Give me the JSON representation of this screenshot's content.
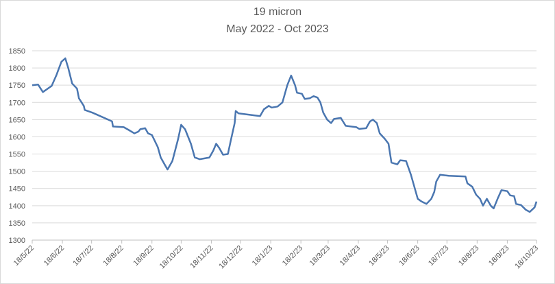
{
  "chart_data": {
    "type": "line",
    "title": "19 micron",
    "subtitle": "May 2022 - Oct 2023",
    "x": [
      "18/5/22",
      "24/5/22",
      "29/5/22",
      "7/6/22",
      "12/6/22",
      "17/6/22",
      "21/6/22",
      "24/6/22",
      "28/6/22",
      "3/7/22",
      "5/7/22",
      "10/7/22",
      "11/7/22",
      "19/7/22",
      "8/8/22",
      "9/8/22",
      "20/8/22",
      "25/8/22",
      "31/8/22",
      "4/9/22",
      "6/9/22",
      "11/9/22",
      "14/9/22",
      "18/9/22",
      "24/9/22",
      "27/9/22",
      "1/10/22",
      "4/10/22",
      "9/10/22",
      "15/10/22",
      "18/10/22",
      "22/10/22",
      "28/10/22",
      "1/11/22",
      "6/11/22",
      "16/11/22",
      "20/11/22",
      "23/11/22",
      "26/11/22",
      "30/11/22",
      "5/12/22",
      "8/12/22",
      "12/12/22",
      "13/12/22",
      "16/12/22",
      "7/1/23",
      "11/1/23",
      "16/1/23",
      "19/1/23",
      "25/1/23",
      "30/1/23",
      "4/2/23",
      "8/2/23",
      "12/2/23",
      "14/2/23",
      "19/2/23",
      "22/2/23",
      "27/2/23",
      "3/3/23",
      "7/3/23",
      "10/3/23",
      "13/3/23",
      "17/3/23",
      "21/3/23",
      "24/3/23",
      "31/3/23",
      "5/4/23",
      "16/4/23",
      "19/4/23",
      "26/4/23",
      "30/4/23",
      "3/5/23",
      "7/5/23",
      "10/5/23",
      "15/5/23",
      "19/5/23",
      "22/5/23",
      "28/5/23",
      "31/5/23",
      "6/6/23",
      "11/6/23",
      "18/6/23",
      "22/6/23",
      "27/6/23",
      "2/7/23",
      "5/7/23",
      "7/7/23",
      "11/7/23",
      "20/7/23",
      "6/8/23",
      "8/8/23",
      "13/8/23",
      "17/8/23",
      "21/8/23",
      "24/8/23",
      "28/8/23",
      "1/9/23",
      "4/9/23",
      "8/9/23",
      "12/9/23",
      "18/9/23",
      "21/9/23",
      "25/9/23",
      "27/9/23",
      "2/10/23",
      "7/10/23",
      "11/10/23",
      "16/10/23",
      "18/10/23"
    ],
    "series": [
      {
        "name": "19 micron",
        "color": "#4a76b0",
        "values": [
          1750,
          1752,
          1730,
          1748,
          1780,
          1818,
          1828,
          1800,
          1755,
          1740,
          1712,
          1690,
          1678,
          1670,
          1645,
          1630,
          1628,
          1620,
          1610,
          1615,
          1622,
          1625,
          1610,
          1605,
          1570,
          1540,
          1520,
          1505,
          1530,
          1595,
          1635,
          1622,
          1580,
          1540,
          1535,
          1540,
          1560,
          1580,
          1568,
          1548,
          1550,
          1590,
          1640,
          1675,
          1668,
          1660,
          1680,
          1690,
          1685,
          1688,
          1700,
          1750,
          1778,
          1750,
          1728,
          1725,
          1710,
          1712,
          1718,
          1714,
          1700,
          1670,
          1650,
          1640,
          1652,
          1655,
          1632,
          1628,
          1623,
          1625,
          1645,
          1650,
          1640,
          1610,
          1595,
          1580,
          1525,
          1520,
          1532,
          1530,
          1490,
          1420,
          1412,
          1405,
          1420,
          1440,
          1470,
          1490,
          1487,
          1485,
          1465,
          1455,
          1432,
          1420,
          1400,
          1420,
          1400,
          1392,
          1420,
          1445,
          1442,
          1430,
          1428,
          1405,
          1402,
          1388,
          1382,
          1395,
          1412
        ]
      }
    ],
    "xlim": [
      "18/5/22",
      "18/10/23"
    ],
    "xticks": [
      "18/5/22",
      "18/6/22",
      "18/7/22",
      "18/8/22",
      "18/9/22",
      "18/10/22",
      "18/11/22",
      "18/12/22",
      "18/1/23",
      "18/2/23",
      "18/3/23",
      "18/4/23",
      "18/5/23",
      "18/6/23",
      "18/7/23",
      "18/8/23",
      "18/9/23",
      "18/10/23"
    ],
    "ylim": [
      1300,
      1850
    ],
    "yticks": [
      1300,
      1350,
      1400,
      1450,
      1500,
      1550,
      1600,
      1650,
      1700,
      1750,
      1800,
      1850
    ],
    "grid": true
  }
}
